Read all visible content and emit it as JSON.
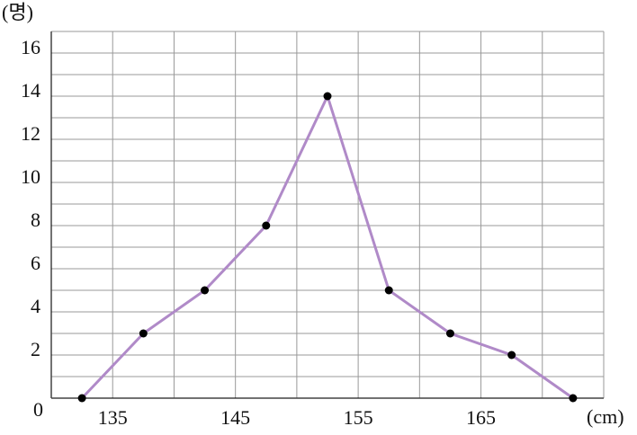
{
  "chart_data": {
    "type": "line",
    "y_label": "(명)",
    "x_label": "(cm)",
    "x": [
      132.5,
      137.5,
      142.5,
      147.5,
      152.5,
      157.5,
      162.5,
      167.5,
      172.5
    ],
    "series": [
      {
        "color": "#b08ac8",
        "values": [
          0,
          3,
          5,
          8,
          14,
          5,
          3,
          2,
          0
        ]
      }
    ],
    "marker_color": "#000000",
    "xlim": [
      130,
      175
    ],
    "xticks": [
      135,
      145,
      155,
      165
    ],
    "ylim": [
      0,
      17
    ],
    "yticks": [
      0,
      2,
      4,
      6,
      8,
      10,
      12,
      14,
      16
    ],
    "grid": true,
    "xgrid_step": 5,
    "ygrid_step": 1
  }
}
